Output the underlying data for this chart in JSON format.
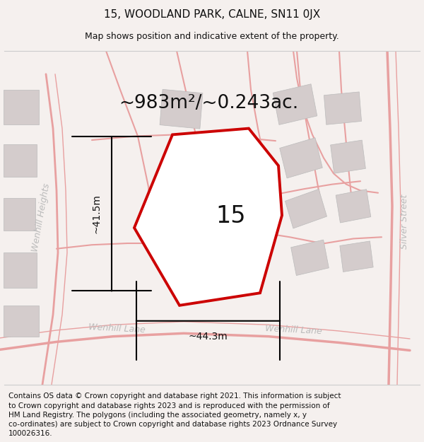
{
  "title_line1": "15, WOODLAND PARK, CALNE, SN11 0JX",
  "title_line2": "Map shows position and indicative extent of the property.",
  "area_text": "~983m²/~0.243ac.",
  "property_number": "15",
  "dim_width": "~44.3m",
  "dim_height": "~41.5m",
  "footer_text": "Contains OS data © Crown copyright and database right 2021. This information is subject\nto Crown copyright and database rights 2023 and is reproduced with the permission of\nHM Land Registry. The polygons (including the associated geometry, namely x, y\nco-ordinates) are subject to Crown copyright and database rights 2023 Ordnance Survey\n100026316.",
  "bg_color": "#f5f0ee",
  "map_bg": "#ffffff",
  "road_color": "#e8a0a0",
  "building_color": "#d4cccc",
  "border_color": "#cccccc",
  "property_fill": "white",
  "property_edge": "#cc0000",
  "text_color": "#111111",
  "road_label_color": "#bbbbbb",
  "title_fontsize": 11,
  "subtitle_fontsize": 9,
  "area_fontsize": 19,
  "prop_num_fontsize": 24,
  "footer_fontsize": 7.5,
  "dim_fontsize": 10,
  "road_label_fontsize": 9
}
